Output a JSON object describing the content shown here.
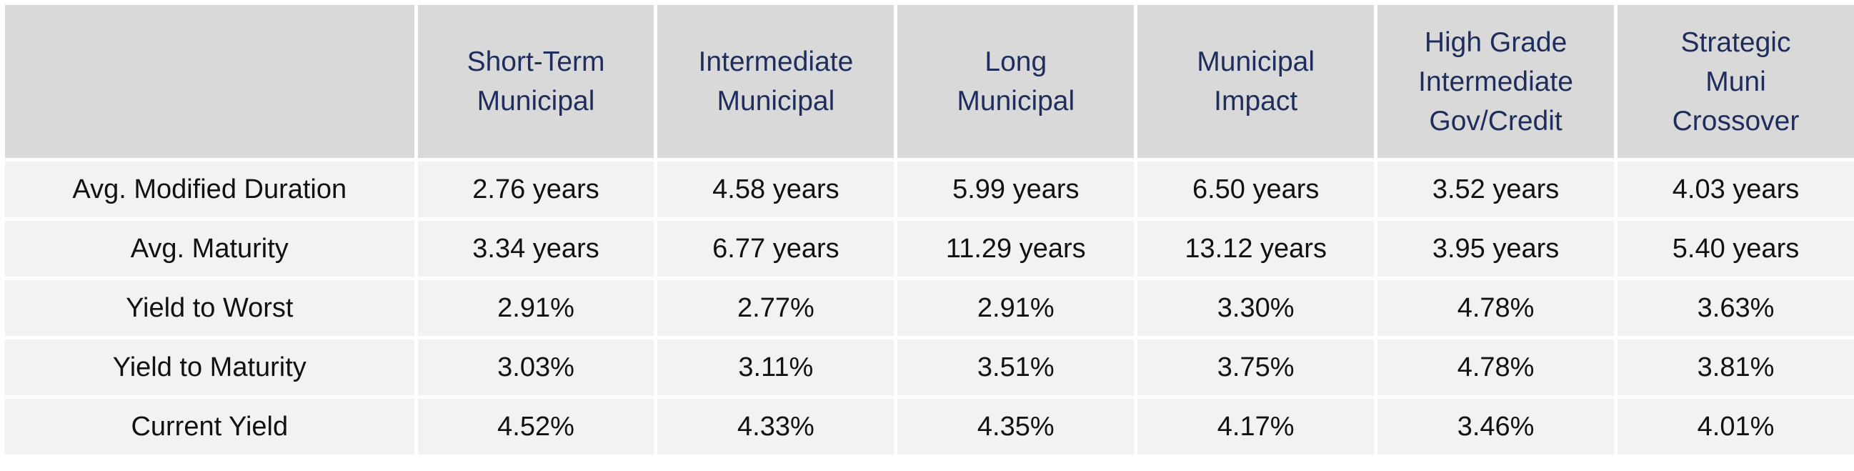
{
  "table": {
    "columns": [
      {
        "lines": [
          "Short-Term",
          "Municipal"
        ]
      },
      {
        "lines": [
          "Intermediate",
          "Municipal"
        ]
      },
      {
        "lines": [
          "Long",
          "Municipal"
        ]
      },
      {
        "lines": [
          "Municipal",
          "Impact"
        ]
      },
      {
        "lines": [
          "High Grade",
          "Intermediate",
          "Gov/Credit"
        ]
      },
      {
        "lines": [
          "Strategic",
          "Muni",
          "Crossover"
        ]
      }
    ],
    "rows": [
      {
        "label": "Avg. Modified Duration",
        "values": [
          "2.76 years",
          "4.58 years",
          "5.99 years",
          "6.50 years",
          "3.52 years",
          "4.03 years"
        ]
      },
      {
        "label": "Avg. Maturity",
        "values": [
          "3.34 years",
          "6.77 years",
          "11.29 years",
          "13.12 years",
          "3.95 years",
          "5.40 years"
        ]
      },
      {
        "label": "Yield to Worst",
        "values": [
          "2.91%",
          "2.77%",
          "2.91%",
          "3.30%",
          "4.78%",
          "3.63%"
        ]
      },
      {
        "label": "Yield to Maturity",
        "values": [
          "3.03%",
          "3.11%",
          "3.51%",
          "3.75%",
          "4.78%",
          "3.81%"
        ]
      },
      {
        "label": "Current Yield",
        "values": [
          "4.52%",
          "4.33%",
          "4.35%",
          "4.17%",
          "3.46%",
          "4.01%"
        ]
      }
    ]
  },
  "colors": {
    "header_background": "#d9d9d9",
    "header_text": "#1f2d5c",
    "body_background": "#f2f2f2",
    "body_text": "#111111",
    "grid_lines": "#ffffff"
  }
}
